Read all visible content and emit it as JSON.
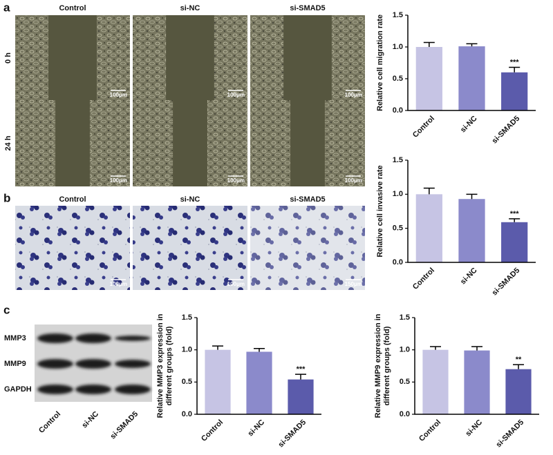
{
  "panel_labels": [
    "a",
    "b",
    "c"
  ],
  "wound": {
    "columns": [
      "Control",
      "si-NC",
      "si-SMAD5"
    ],
    "rows": [
      "0 h",
      "24 h"
    ],
    "scale_bar": "100μm"
  },
  "transwell": {
    "columns": [
      "Control",
      "si-NC",
      "si-SMAD5"
    ],
    "scale_bars": [
      "100μm",
      "100μm",
      "150μm"
    ]
  },
  "blot": {
    "rows": [
      "MMP3",
      "MMP9",
      "GAPDH"
    ],
    "columns": [
      "Control",
      "si-NC",
      "si-SMAD5"
    ]
  },
  "chart_data": [
    {
      "type": "bar",
      "ylabel": "Relative cell migration rate",
      "categories": [
        "Control",
        "si-NC",
        "si-SMAD5"
      ],
      "values": [
        1.0,
        1.01,
        0.6
      ],
      "errors": [
        0.07,
        0.04,
        0.08
      ],
      "significance": [
        null,
        null,
        "***"
      ],
      "colors": [
        "#c6c4e4",
        "#8b8acb",
        "#5b5bab"
      ],
      "ylim": [
        0,
        1.5
      ],
      "yticks": [
        {
          "value": 0,
          "label": "0.0"
        },
        {
          "value": 0.5,
          "label": "0.5"
        },
        {
          "value": 1,
          "label": "1.0"
        },
        {
          "value": 1.5,
          "label": "1.5"
        }
      ]
    },
    {
      "type": "bar",
      "ylabel": "Relative cell invasive rate",
      "categories": [
        "Control",
        "si-NC",
        "si-SMAD5"
      ],
      "values": [
        1.0,
        0.93,
        0.59
      ],
      "errors": [
        0.09,
        0.07,
        0.05
      ],
      "significance": [
        null,
        null,
        "***"
      ],
      "colors": [
        "#c6c4e4",
        "#8b8acb",
        "#5b5bab"
      ],
      "ylim": [
        0,
        1.5
      ],
      "yticks": [
        {
          "value": 0,
          "label": "0.0"
        },
        {
          "value": 0.5,
          "label": "0.5"
        },
        {
          "value": 1,
          "label": "1.0"
        },
        {
          "value": 1.5,
          "label": "1.5"
        }
      ]
    },
    {
      "type": "bar",
      "ylabel": [
        "Relative MMP3 expression in",
        "different groups (fold)"
      ],
      "categories": [
        "Control",
        "si-NC",
        "si-SMAD5"
      ],
      "values": [
        1.0,
        0.97,
        0.54
      ],
      "errors": [
        0.06,
        0.05,
        0.08
      ],
      "significance": [
        null,
        null,
        "***"
      ],
      "colors": [
        "#c6c4e4",
        "#8b8acb",
        "#5b5bab"
      ],
      "ylim": [
        0,
        1.5
      ],
      "yticks": [
        {
          "value": 0,
          "label": "0.0"
        },
        {
          "value": 0.5,
          "label": "0.5"
        },
        {
          "value": 1,
          "label": "1.0"
        },
        {
          "value": 1.5,
          "label": "1.5"
        }
      ]
    },
    {
      "type": "bar",
      "ylabel": [
        "Relative MMP9 expression in",
        "different groups (fold)"
      ],
      "categories": [
        "Control",
        "si-NC",
        "si-SMAD5"
      ],
      "values": [
        1.0,
        0.99,
        0.7
      ],
      "errors": [
        0.05,
        0.06,
        0.07
      ],
      "significance": [
        null,
        null,
        "**"
      ],
      "colors": [
        "#c6c4e4",
        "#8b8acb",
        "#5b5bab"
      ],
      "ylim": [
        0,
        1.5
      ],
      "yticks": [
        {
          "value": 0,
          "label": "0.0"
        },
        {
          "value": 0.5,
          "label": "0.5"
        },
        {
          "value": 1,
          "label": "1.0"
        },
        {
          "value": 1.5,
          "label": "1.5"
        }
      ]
    }
  ]
}
